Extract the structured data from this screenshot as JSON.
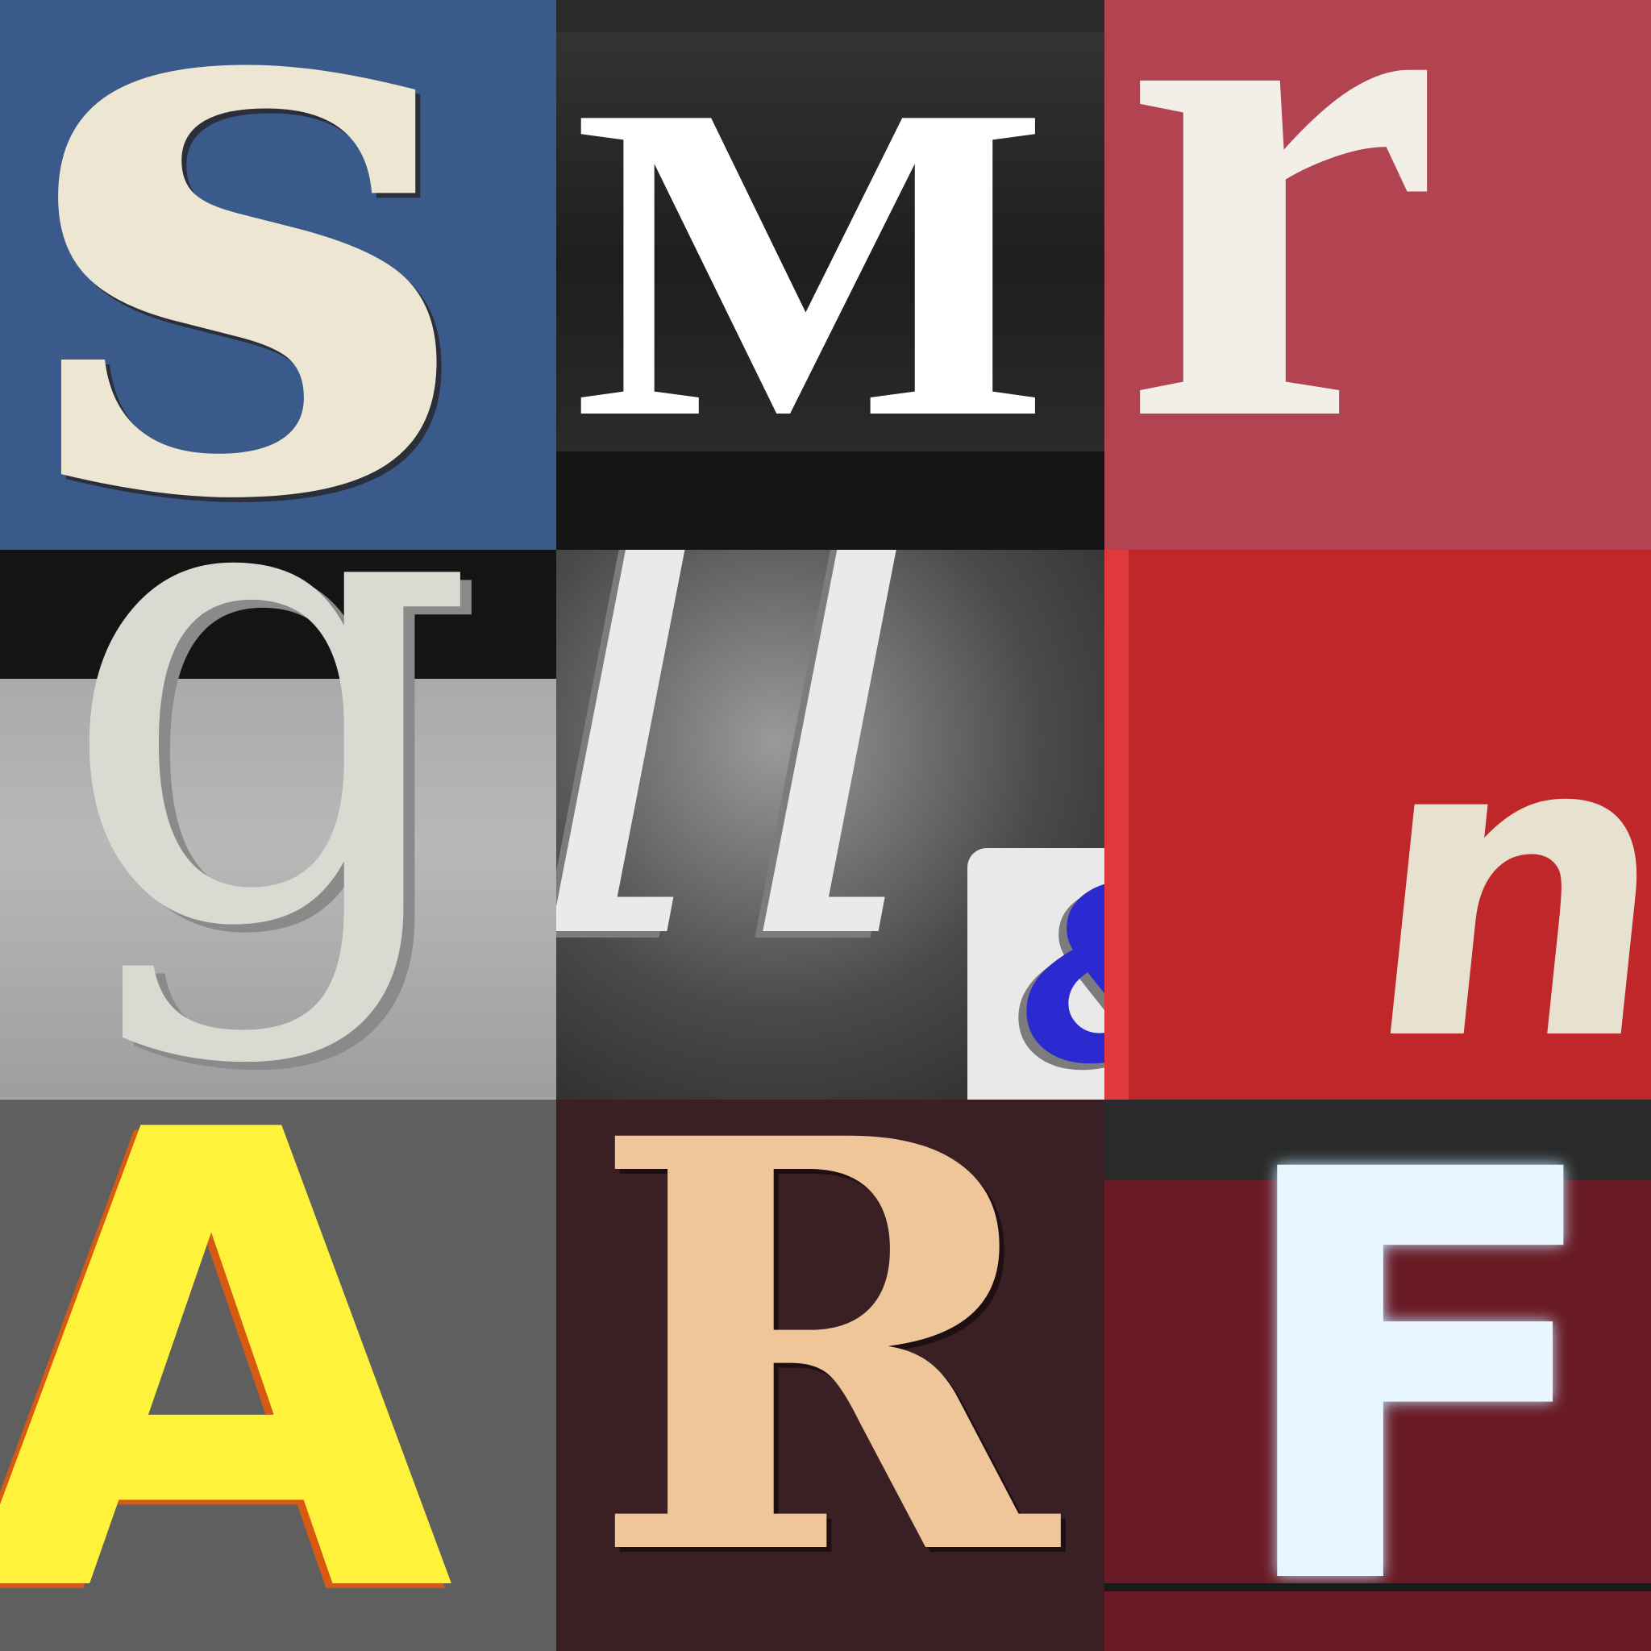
{
  "tiles": [
    {
      "letter": "s",
      "bg": "#3a5a8c",
      "fg": "#ece6d2"
    },
    {
      "letter": "M",
      "bg": "#2a2a2a",
      "fg": "#ffffff"
    },
    {
      "letter": "r",
      "bg": "#b14450",
      "fg": "#f2efe8"
    },
    {
      "letter": "g",
      "bg": "#a9a9a9",
      "fg": "#d9dbd2"
    },
    {
      "letter": "ll",
      "extra": "&",
      "bg": "#2e2e2e",
      "fg": "#eaeaea",
      "extra_color": "#2a2ad0"
    },
    {
      "letter": "n",
      "bg": "#c0272b",
      "fg": "#e6e2cf"
    },
    {
      "letter": "A",
      "bg": "#5f5f5f",
      "fg": "#fff23a"
    },
    {
      "letter": "R",
      "bg": "#3a1f25",
      "fg": "#efc69a"
    },
    {
      "letter": "F",
      "bg": "#6a1a24",
      "fg": "#e8f6ff"
    }
  ]
}
